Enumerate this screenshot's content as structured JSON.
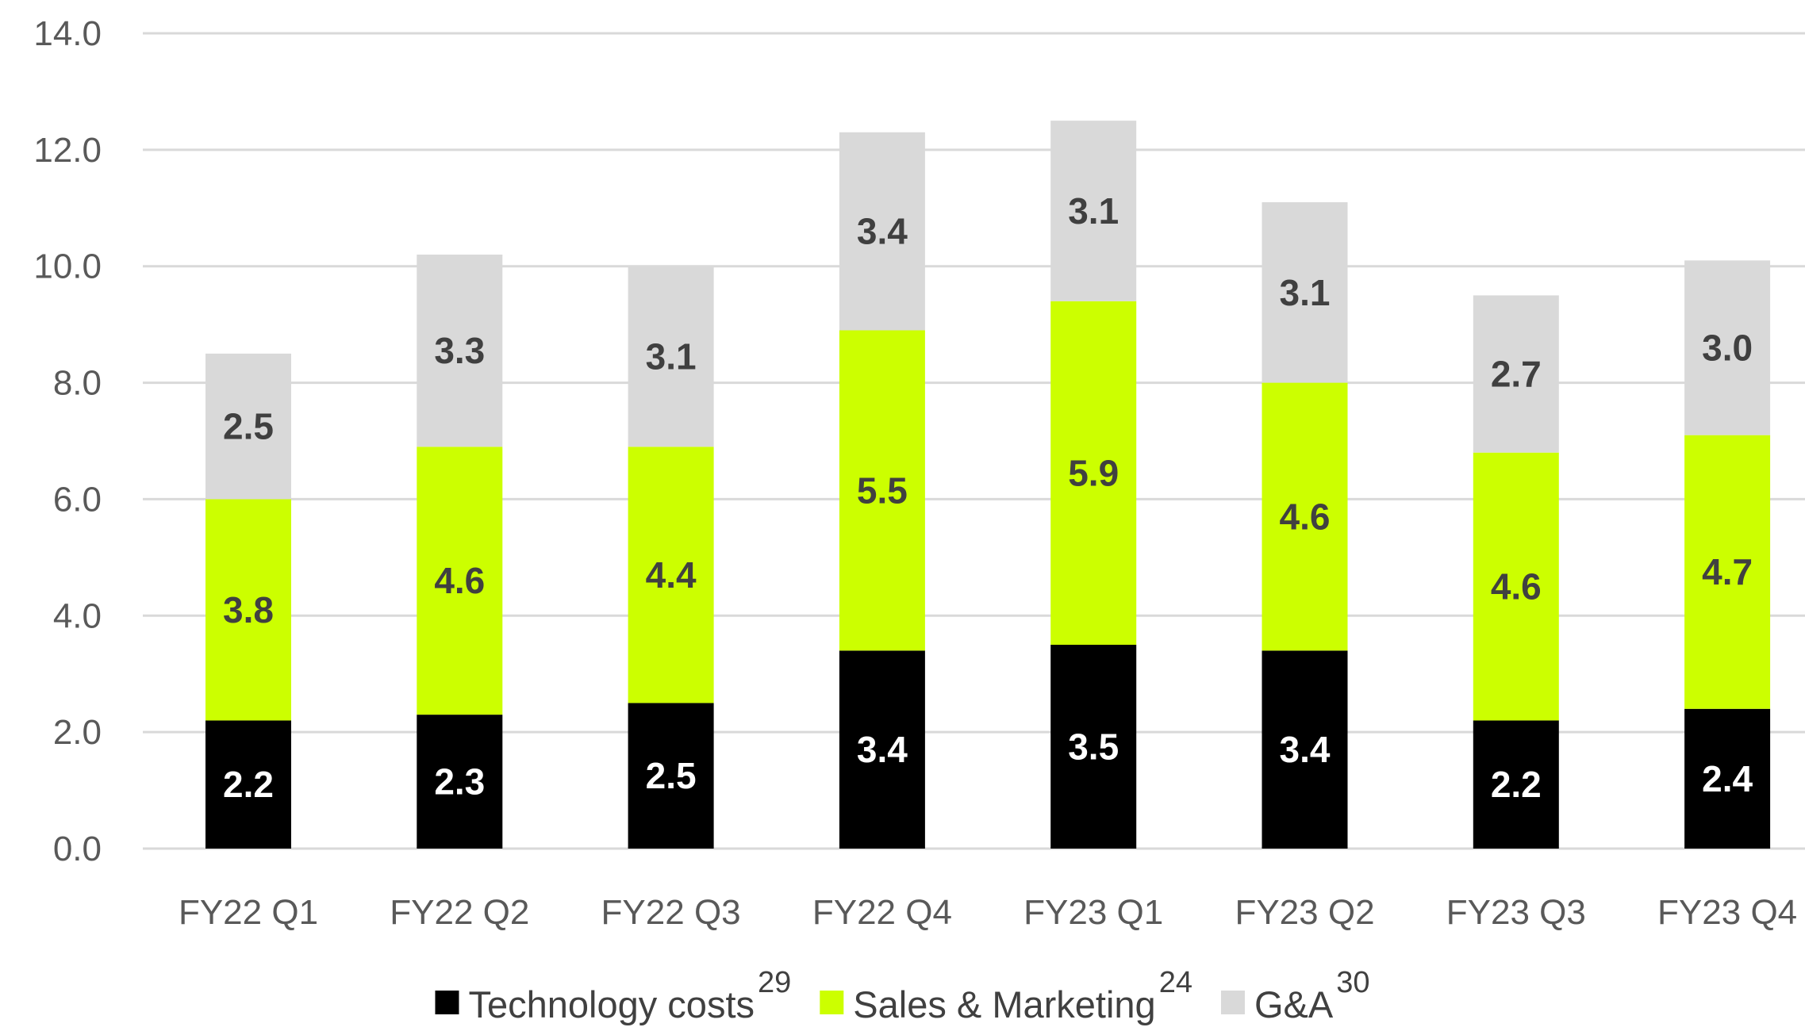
{
  "chart_data": {
    "type": "bar",
    "stacked": true,
    "categories": [
      "FY22 Q1",
      "FY22 Q2",
      "FY22 Q3",
      "FY22 Q4",
      "FY23 Q1",
      "FY23 Q2",
      "FY23 Q3",
      "FY23 Q4"
    ],
    "series": [
      {
        "name": "Technology costs",
        "footnote": "29",
        "color": "#000000",
        "label_color": "#ffffff",
        "values": [
          2.2,
          2.3,
          2.5,
          3.4,
          3.5,
          3.4,
          2.2,
          2.4
        ],
        "labels": [
          "2.2",
          "2.3",
          "2.5",
          "3.4",
          "3.5",
          "3.4",
          "2.2",
          "2.4"
        ]
      },
      {
        "name": "Sales & Marketing",
        "footnote": "24",
        "color": "#ccff00",
        "label_color": "#404040",
        "values": [
          3.8,
          4.6,
          4.4,
          5.5,
          5.9,
          4.6,
          4.6,
          4.7
        ],
        "labels": [
          "3.8",
          "4.6",
          "4.4",
          "5.5",
          "5.9",
          "4.6",
          "4.6",
          "4.7"
        ]
      },
      {
        "name": "G&A",
        "footnote": "30",
        "color": "#d9d9d9",
        "label_color": "#404040",
        "values": [
          2.5,
          3.3,
          3.1,
          3.4,
          3.1,
          3.1,
          2.7,
          3.0
        ],
        "labels": [
          "2.5",
          "3.3",
          "3.1",
          "3.4",
          "3.1",
          "3.1",
          "2.7",
          "3.0"
        ]
      }
    ],
    "y_ticks": [
      "0.0",
      "2.0",
      "4.0",
      "6.0",
      "8.0",
      "10.0",
      "12.0",
      "14.0"
    ],
    "ylim": [
      0,
      14
    ],
    "grid": true,
    "legend_position": "bottom"
  }
}
